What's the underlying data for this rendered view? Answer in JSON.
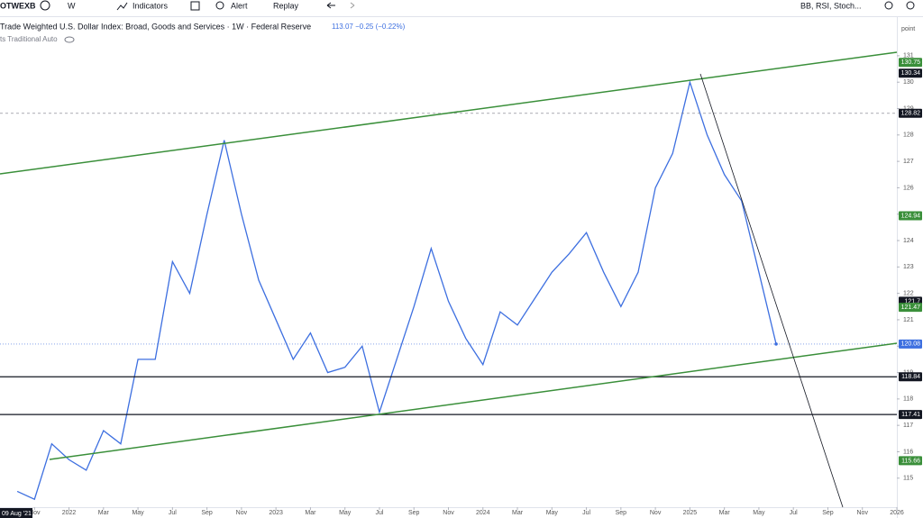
{
  "toolbar": {
    "symbol": "OTWEXB",
    "interval": "W",
    "indicators": "Indicators",
    "alert": "Alert",
    "replay": "Replay",
    "template": "BB, RSI, Stoch..."
  },
  "legend": {
    "title": "Trade Weighted U.S. Dollar Index: Broad, Goods and Services · 1W · Federal Reserve",
    "quote": "113.07 −0.25 (−0.22%)",
    "scale_note": "ts Traditional Auto"
  },
  "chart_data": {
    "type": "line",
    "y_axis_label": "point",
    "cursor_label": "09 Aug '21",
    "x": [
      "2021-10",
      "2021-11",
      "2021-12",
      "2022-01",
      "2022-02",
      "2022-03",
      "2022-04",
      "2022-05",
      "2022-06",
      "2022-07",
      "2022-08",
      "2022-09",
      "2022-10",
      "2022-11",
      "2022-12",
      "2023-01",
      "2023-02",
      "2023-03",
      "2023-04",
      "2023-05",
      "2023-06",
      "2023-07",
      "2023-08",
      "2023-09",
      "2023-10",
      "2023-11",
      "2023-12",
      "2024-01",
      "2024-02",
      "2024-03",
      "2024-04",
      "2024-05",
      "2024-06",
      "2024-07",
      "2024-08",
      "2024-09",
      "2024-10",
      "2024-11",
      "2024-12",
      "2025-01",
      "2025-02",
      "2025-03",
      "2025-04",
      "2025-05",
      "2025-06"
    ],
    "series": [
      {
        "name": "Trade Weighted U.S. Dollar Index",
        "color": "#3d6fe0",
        "values": [
          114.5,
          114.2,
          116.3,
          115.7,
          115.3,
          116.8,
          116.3,
          119.5,
          119.5,
          123.2,
          122,
          125,
          127.8,
          125,
          122.5,
          121,
          119.5,
          120.5,
          119,
          119.2,
          120,
          117.5,
          119.5,
          121.5,
          123.7,
          121.7,
          120.3,
          119.3,
          121.3,
          120.8,
          121.8,
          122.8,
          123.5,
          124.3,
          122.8,
          121.5,
          122.8,
          126,
          127.3,
          130,
          128,
          126.5,
          125.5,
          122.8,
          120.08
        ]
      }
    ],
    "xlim": [
      "2021-09",
      "2026-01"
    ],
    "xticks": [
      {
        "value": "2021-11",
        "label": "Nov"
      },
      {
        "value": "2022-01",
        "label": "2022"
      },
      {
        "value": "2022-03",
        "label": "Mar"
      },
      {
        "value": "2022-05",
        "label": "May"
      },
      {
        "value": "2022-07",
        "label": "Jul"
      },
      {
        "value": "2022-09",
        "label": "Sep"
      },
      {
        "value": "2022-11",
        "label": "Nov"
      },
      {
        "value": "2023-01",
        "label": "2023"
      },
      {
        "value": "2023-03",
        "label": "Mar"
      },
      {
        "value": "2023-05",
        "label": "May"
      },
      {
        "value": "2023-07",
        "label": "Jul"
      },
      {
        "value": "2023-09",
        "label": "Sep"
      },
      {
        "value": "2023-11",
        "label": "Nov"
      },
      {
        "value": "2024-01",
        "label": "2024"
      },
      {
        "value": "2024-03",
        "label": "Mar"
      },
      {
        "value": "2024-05",
        "label": "May"
      },
      {
        "value": "2024-07",
        "label": "Jul"
      },
      {
        "value": "2024-09",
        "label": "Sep"
      },
      {
        "value": "2024-11",
        "label": "Nov"
      },
      {
        "value": "2025-01",
        "label": "2025"
      },
      {
        "value": "2025-03",
        "label": "Mar"
      },
      {
        "value": "2025-05",
        "label": "May"
      },
      {
        "value": "2025-07",
        "label": "Jul"
      },
      {
        "value": "2025-09",
        "label": "Sep"
      },
      {
        "value": "2025-11",
        "label": "Nov"
      },
      {
        "value": "2026-01",
        "label": "2026"
      }
    ],
    "ylim": [
      113.9,
      132.43
    ],
    "yticks": [
      115,
      116,
      117,
      118,
      119,
      120,
      121,
      122,
      123,
      124,
      125,
      126,
      127,
      128,
      129,
      130,
      131
    ],
    "price_labels": [
      {
        "value": 130.75,
        "label": "130.75",
        "color": "#3a8f3a"
      },
      {
        "value": 130.34,
        "label": "130.34",
        "color": "#131722"
      },
      {
        "value": 128.82,
        "label": "128.82",
        "color": "#131722"
      },
      {
        "value": 124.94,
        "label": "124.94",
        "color": "#3a8f3a"
      },
      {
        "value": 121.7,
        "label": "121.7",
        "color": "#131722"
      },
      {
        "value": 121.47,
        "label": "121.47",
        "color": "#3a8f3a"
      },
      {
        "value": 120.08,
        "label": "120.08",
        "color": "#3d6fe0"
      },
      {
        "value": 118.84,
        "label": "118.84",
        "color": "#131722"
      },
      {
        "value": 117.41,
        "label": "117.41",
        "color": "#131722"
      },
      {
        "value": 115.66,
        "label": "115.66",
        "color": "#3a8f3a"
      }
    ]
  }
}
